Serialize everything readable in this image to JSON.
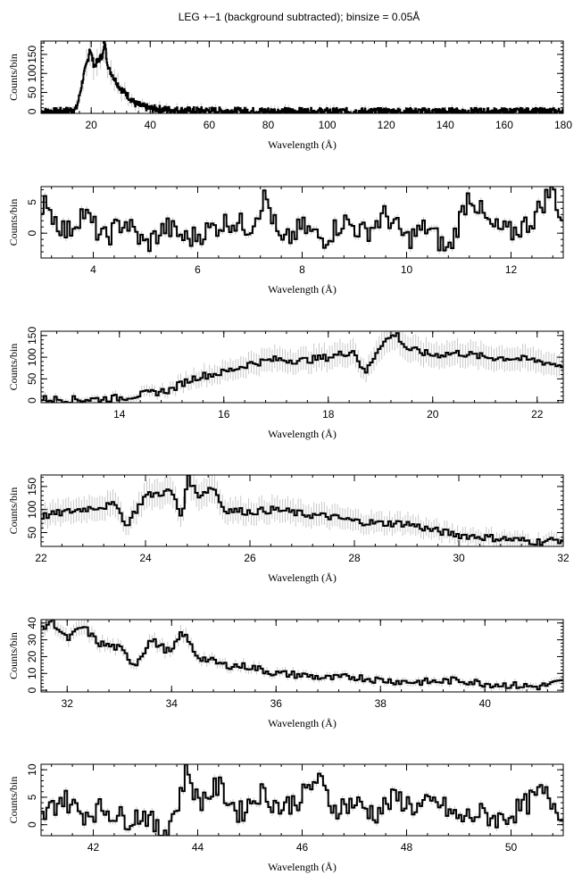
{
  "figure": {
    "title": "LEG +−1 (background subtracted); binsize = 0.05Å",
    "colors": {
      "line": "#000000",
      "errorbar": "#c8c8c8",
      "background": "#ffffff"
    }
  },
  "chart_data": [
    {
      "type": "line",
      "xlabel": "Wavelength (Å)",
      "ylabel": "Counts/bin",
      "xlim": [
        3,
        180
      ],
      "ylim": [
        -5,
        185
      ],
      "xticks": [
        20,
        40,
        60,
        80,
        100,
        120,
        140,
        160,
        180
      ],
      "yticks": [
        0,
        50,
        100,
        150
      ],
      "series": [
        {
          "x": [
            3,
            8,
            12,
            15,
            16,
            17,
            18,
            19,
            19.5,
            20,
            21,
            22,
            23,
            24,
            24.7,
            25,
            26,
            27,
            28,
            30,
            32,
            35,
            38,
            40,
            45,
            50,
            60,
            70,
            80,
            100,
            120,
            140,
            160,
            180
          ],
          "y": [
            0,
            0,
            2,
            8,
            40,
            80,
            110,
            140,
            170,
            150,
            120,
            130,
            140,
            150,
            185,
            150,
            110,
            100,
            85,
            60,
            45,
            20,
            12,
            8,
            5,
            3,
            2,
            1,
            1,
            0,
            0,
            0,
            0,
            0
          ]
        }
      ]
    },
    {
      "type": "line",
      "xlabel": "Wavelength (Å)",
      "ylabel": "Counts/bin",
      "xlim": [
        3,
        13
      ],
      "ylim": [
        -4,
        7.5
      ],
      "xticks": [
        4,
        6,
        8,
        10,
        12
      ],
      "yticks": [
        0,
        5
      ],
      "series": [
        {
          "x": [
            3.0,
            3.1,
            3.2,
            3.5,
            3.8,
            4.2,
            4.6,
            5.0,
            5.4,
            5.8,
            6.2,
            6.6,
            7.0,
            7.3,
            7.6,
            8.0,
            8.4,
            8.8,
            9.2,
            9.6,
            10.0,
            10.4,
            10.8,
            11.2,
            11.6,
            12.0,
            12.4,
            12.8,
            13.0
          ],
          "y": [
            0,
            6.5,
            3,
            0,
            3.5,
            -1,
            2,
            -2,
            1,
            -1,
            0.5,
            2,
            1,
            6,
            -2,
            1,
            -1,
            2,
            0,
            3,
            -1,
            1,
            -3,
            6.5,
            1,
            0,
            2,
            7.5,
            1
          ]
        }
      ]
    },
    {
      "type": "line",
      "xlabel": "Wavelength (Å)",
      "ylabel": "Counts/bin",
      "xlim": [
        12.5,
        22.5
      ],
      "ylim": [
        -5,
        160
      ],
      "xticks": [
        14,
        16,
        18,
        20,
        22
      ],
      "yticks": [
        0,
        50,
        100,
        150
      ],
      "series": [
        {
          "x": [
            12.5,
            13.0,
            13.5,
            14.0,
            14.5,
            15.0,
            15.2,
            15.5,
            16.0,
            16.5,
            17.0,
            17.5,
            18.0,
            18.5,
            18.7,
            19.0,
            19.3,
            19.5,
            20.0,
            20.5,
            21.0,
            21.5,
            22.0,
            22.5
          ],
          "y": [
            4,
            2,
            3,
            6,
            15,
            25,
            40,
            55,
            65,
            85,
            95,
            92,
            100,
            115,
            60,
            130,
            155,
            120,
            105,
            110,
            100,
            98,
            92,
            80
          ]
        }
      ]
    },
    {
      "type": "line",
      "xlabel": "Wavelength (Å)",
      "ylabel": "Counts/bin",
      "xlim": [
        22,
        32
      ],
      "ylim": [
        20,
        175
      ],
      "xticks": [
        22,
        24,
        26,
        28,
        30,
        32
      ],
      "yticks": [
        50,
        100,
        150
      ],
      "series": [
        {
          "x": [
            22.0,
            22.5,
            23.0,
            23.5,
            23.6,
            24.0,
            24.5,
            24.7,
            24.8,
            25.0,
            25.3,
            25.5,
            26.0,
            26.5,
            27.0,
            27.5,
            28.0,
            28.5,
            29.0,
            29.5,
            30.0,
            30.5,
            31.0,
            31.5,
            32.0
          ],
          "y": [
            85,
            95,
            105,
            110,
            60,
            130,
            140,
            80,
            175,
            130,
            150,
            100,
            95,
            100,
            90,
            85,
            75,
            70,
            70,
            55,
            45,
            40,
            35,
            30,
            35
          ]
        }
      ]
    },
    {
      "type": "line",
      "xlabel": "Wavelength (Å)",
      "ylabel": "Counts/bin",
      "xlim": [
        31.5,
        41.5
      ],
      "ylim": [
        -1,
        42
      ],
      "xticks": [
        32,
        34,
        36,
        38,
        40
      ],
      "yticks": [
        0,
        10,
        20,
        30,
        40
      ],
      "series": [
        {
          "x": [
            31.5,
            31.7,
            32.0,
            32.3,
            32.6,
            33.0,
            33.3,
            33.6,
            34.0,
            34.2,
            34.5,
            35.0,
            35.5,
            36.0,
            36.5,
            37.0,
            37.5,
            38.0,
            38.5,
            39.0,
            39.5,
            40.0,
            40.5,
            41.0,
            41.5
          ],
          "y": [
            35,
            42,
            30,
            38,
            28,
            25,
            15,
            30,
            22,
            35,
            20,
            15,
            14,
            10,
            9,
            7,
            8,
            6,
            5,
            5,
            6,
            4,
            3,
            2,
            5
          ]
        }
      ]
    },
    {
      "type": "line",
      "xlabel": "Wavelength (Å)",
      "ylabel": "Counts/bin",
      "xlim": [
        41,
        51
      ],
      "ylim": [
        -2,
        11
      ],
      "xticks": [
        42,
        44,
        46,
        48,
        50
      ],
      "yticks": [
        0,
        5,
        10
      ],
      "series": [
        {
          "x": [
            41.0,
            41.4,
            41.8,
            42.2,
            42.6,
            43.0,
            43.3,
            43.6,
            43.8,
            44.0,
            44.4,
            44.8,
            45.2,
            45.6,
            46.0,
            46.3,
            46.6,
            47.0,
            47.4,
            47.8,
            48.2,
            48.6,
            49.0,
            49.4,
            49.8,
            50.2,
            50.6,
            51.0
          ],
          "y": [
            1,
            5,
            2,
            3,
            1,
            2,
            -2,
            3,
            10.5,
            4,
            7,
            2,
            6,
            3,
            5,
            8.5,
            3,
            4,
            2,
            5,
            3,
            4,
            1,
            2,
            1,
            3,
            6,
            2
          ]
        }
      ]
    }
  ]
}
